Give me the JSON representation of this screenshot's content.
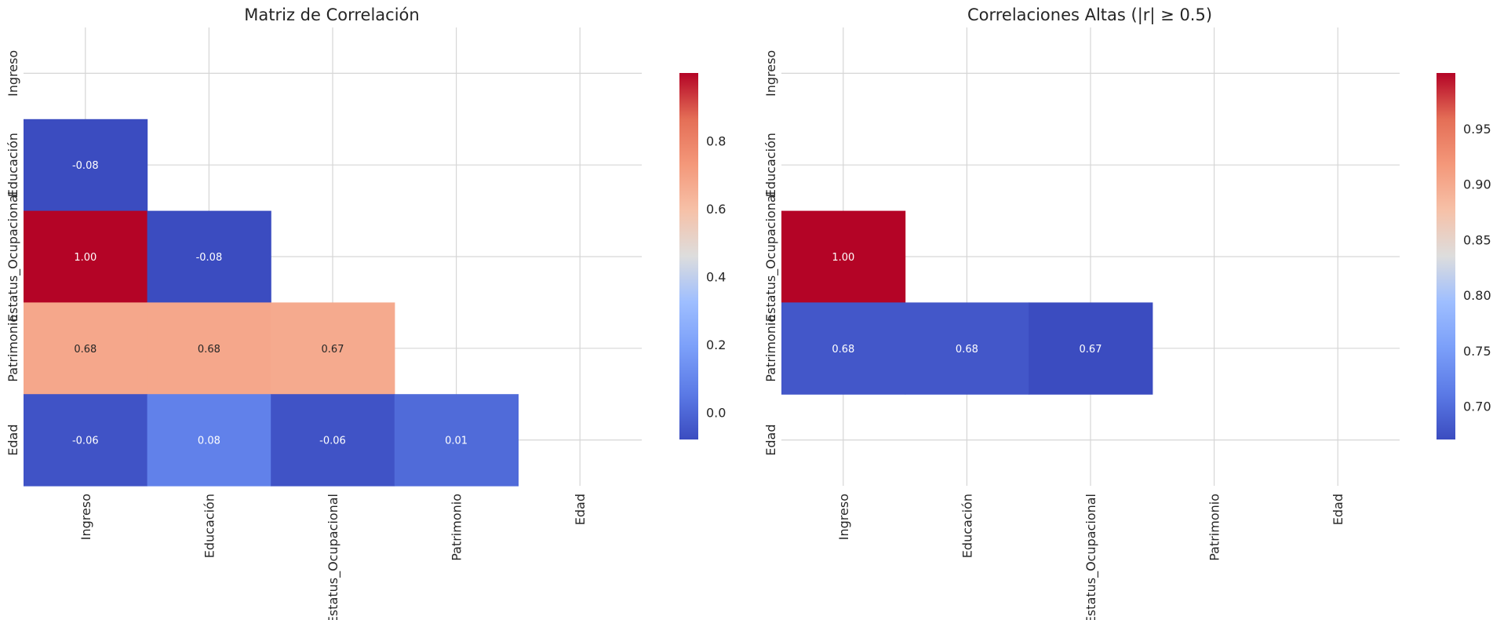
{
  "chart_data": [
    {
      "type": "heatmap",
      "title": "Matriz de Correlación",
      "variables": [
        "Ingreso",
        "Educación",
        "Estatus_Ocupacional",
        "Patrimonio",
        "Edad"
      ],
      "mask": "upper triangle including diagonal",
      "matrix": [
        [
          null,
          null,
          null,
          null,
          null
        ],
        [
          -0.08,
          null,
          null,
          null,
          null
        ],
        [
          1.0,
          -0.08,
          null,
          null,
          null
        ],
        [
          0.68,
          0.68,
          0.67,
          null,
          null
        ],
        [
          -0.06,
          0.08,
          -0.06,
          0.01,
          null
        ]
      ],
      "annotations": [
        [
          "",
          "",
          "",
          "",
          ""
        ],
        [
          "-0.08",
          "",
          "",
          "",
          ""
        ],
        [
          "1.00",
          "-0.08",
          "",
          "",
          ""
        ],
        [
          "0.68",
          "0.68",
          "0.67",
          "",
          ""
        ],
        [
          "-0.06",
          "0.08",
          "-0.06",
          "0.01",
          ""
        ]
      ],
      "colormap": "coolwarm",
      "vmin": -0.08,
      "vmax": 1.0,
      "colorbar_ticks": [
        0.0,
        0.2,
        0.4,
        0.6,
        0.8
      ],
      "colorbar_tick_labels": [
        "0.0",
        "0.2",
        "0.4",
        "0.6",
        "0.8"
      ],
      "grid": true
    },
    {
      "type": "heatmap",
      "title": "Correlaciones Altas (|r| ≥ 0.5)",
      "variables": [
        "Ingreso",
        "Educación",
        "Estatus_Ocupacional",
        "Patrimonio",
        "Edad"
      ],
      "mask": "upper triangle including diagonal, plus |r| < 0.5",
      "matrix": [
        [
          null,
          null,
          null,
          null,
          null
        ],
        [
          null,
          null,
          null,
          null,
          null
        ],
        [
          1.0,
          null,
          null,
          null,
          null
        ],
        [
          0.68,
          0.68,
          0.67,
          null,
          null
        ],
        [
          null,
          null,
          null,
          null,
          null
        ]
      ],
      "annotations": [
        [
          "",
          "",
          "",
          "",
          ""
        ],
        [
          "",
          "",
          "",
          "",
          ""
        ],
        [
          "1.00",
          "",
          "",
          "",
          ""
        ],
        [
          "0.68",
          "0.68",
          "0.67",
          "",
          ""
        ],
        [
          "",
          "",
          "",
          "",
          ""
        ]
      ],
      "colormap": "coolwarm",
      "vmin": 0.67,
      "vmax": 1.0,
      "colorbar_ticks": [
        0.7,
        0.75,
        0.8,
        0.85,
        0.9,
        0.95
      ],
      "colorbar_tick_labels": [
        "0.70",
        "0.75",
        "0.80",
        "0.85",
        "0.90",
        "0.95"
      ],
      "grid": true
    }
  ]
}
